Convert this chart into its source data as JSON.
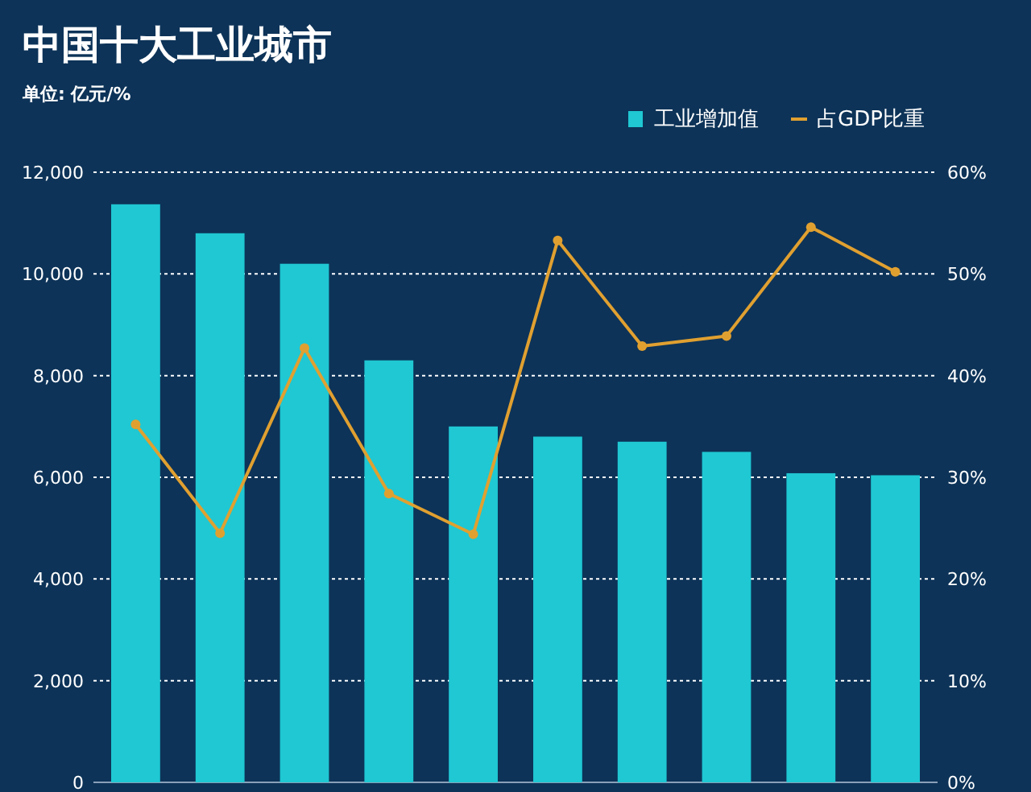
{
  "chart_data": {
    "type": "bar",
    "title": "中国十大工业城市",
    "subtitle": "单位: 亿元/%",
    "categories": [
      null,
      null,
      null,
      null,
      null,
      null,
      null,
      null,
      null,
      null
    ],
    "series": [
      {
        "name": "工业增加值",
        "color": "#1fc8d3",
        "values": [
          11370,
          10800,
          10200,
          8300,
          7000,
          6800,
          6700,
          6500,
          6080,
          6040
        ]
      },
      {
        "name": "占GDP比重",
        "type": "line",
        "axis": "y2",
        "color": "#e0a030",
        "marker": "circle",
        "values": [
          35.2,
          24.5,
          42.7,
          28.4,
          24.4,
          53.3,
          42.9,
          43.9,
          54.6,
          50.2
        ]
      }
    ],
    "ylim": [
      0,
      12000
    ],
    "yticks": [
      {
        "value": 0,
        "label": "0"
      },
      {
        "value": 2000,
        "label": "2,000"
      },
      {
        "value": 4000,
        "label": "4,000"
      },
      {
        "value": 6000,
        "label": "6,000"
      },
      {
        "value": 8000,
        "label": "8,000"
      },
      {
        "value": 10000,
        "label": "10,000"
      },
      {
        "value": 12000,
        "label": "12,000"
      }
    ],
    "y2lim": [
      0,
      60
    ],
    "y2ticks": [
      {
        "value": 0,
        "label": "0%"
      },
      {
        "value": 10,
        "label": "10%"
      },
      {
        "value": 20,
        "label": "20%"
      },
      {
        "value": 30,
        "label": "30%"
      },
      {
        "value": 40,
        "label": "40%"
      },
      {
        "value": 50,
        "label": "50%"
      },
      {
        "value": 60,
        "label": "60%"
      }
    ],
    "grid": "y",
    "legend": "top right"
  }
}
